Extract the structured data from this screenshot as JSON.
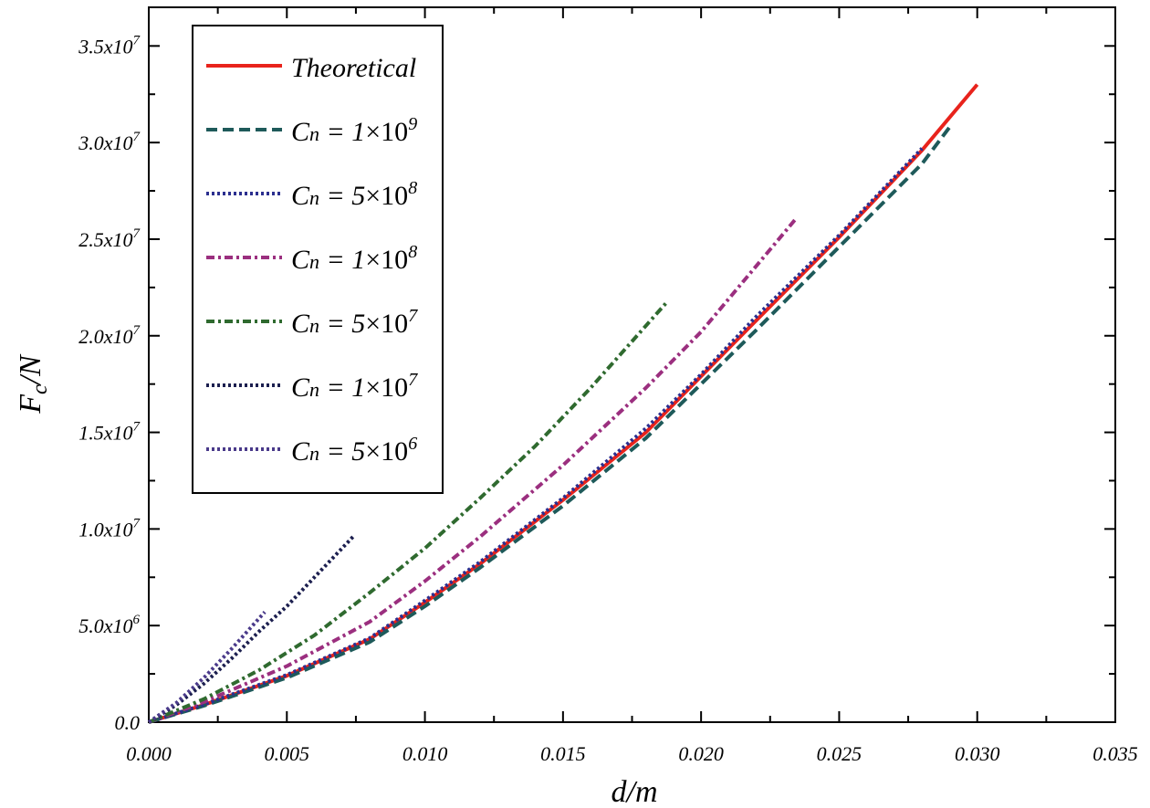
{
  "chart_data": {
    "type": "line",
    "xlabel": "d/m",
    "ylabel": "F",
    "ylabel_sub": "c",
    "ylabel_suffix": "/N",
    "xlim": [
      0,
      0.035
    ],
    "ylim": [
      0,
      37000000
    ],
    "x_ticks": [
      {
        "value": 0.0,
        "label": "0.000"
      },
      {
        "value": 0.005,
        "label": "0.005"
      },
      {
        "value": 0.01,
        "label": "0.010"
      },
      {
        "value": 0.015,
        "label": "0.015"
      },
      {
        "value": 0.02,
        "label": "0.020"
      },
      {
        "value": 0.025,
        "label": "0.025"
      },
      {
        "value": 0.03,
        "label": "0.030"
      },
      {
        "value": 0.035,
        "label": "0.035"
      }
    ],
    "y_ticks": [
      {
        "value": 0,
        "base": "0.0",
        "exp": ""
      },
      {
        "value": 5000000,
        "base": "5.0x10",
        "exp": "6"
      },
      {
        "value": 10000000,
        "base": "1.0x10",
        "exp": "7"
      },
      {
        "value": 15000000,
        "base": "1.5x10",
        "exp": "7"
      },
      {
        "value": 20000000,
        "base": "2.0x10",
        "exp": "7"
      },
      {
        "value": 25000000,
        "base": "2.5x10",
        "exp": "7"
      },
      {
        "value": 30000000,
        "base": "3.0x10",
        "exp": "7"
      },
      {
        "value": 35000000,
        "base": "3.5x10",
        "exp": "7"
      }
    ],
    "legend_position": "top-left",
    "series": [
      {
        "name": "Theoretical",
        "label": "Theoretical",
        "color": "#e8231c",
        "style": "solid",
        "x": [
          0,
          0.002,
          0.005,
          0.008,
          0.01,
          0.012,
          0.015,
          0.018,
          0.02,
          0.022,
          0.025,
          0.028,
          0.03
        ],
        "y": [
          0,
          900000,
          2400000,
          4300000,
          6200000,
          8200000,
          11500000,
          15000000,
          17900000,
          20800000,
          25100000,
          29600000,
          33000000
        ]
      },
      {
        "name": "Cn = 1x10^9",
        "cn_base": "1",
        "cn_exp": "9",
        "color": "#1e5a5a",
        "style": "dashed",
        "x": [
          0,
          0.002,
          0.005,
          0.008,
          0.01,
          0.012,
          0.015,
          0.018,
          0.02,
          0.022,
          0.025,
          0.028,
          0.029
        ],
        "y": [
          0,
          850000,
          2300000,
          4150000,
          6000000,
          8000000,
          11200000,
          14700000,
          17500000,
          20300000,
          24600000,
          28900000,
          30800000
        ]
      },
      {
        "name": "Cn = 5x10^8",
        "cn_base": "5",
        "cn_exp": "8",
        "color": "#2b2f8f",
        "style": "dotted",
        "x": [
          0,
          0.002,
          0.005,
          0.008,
          0.01,
          0.012,
          0.015,
          0.018,
          0.02,
          0.022,
          0.025,
          0.028
        ],
        "y": [
          0,
          920000,
          2450000,
          4350000,
          6300000,
          8300000,
          11600000,
          15200000,
          18000000,
          21000000,
          25200000,
          29700000
        ]
      },
      {
        "name": "Cn = 1x10^8",
        "cn_base": "1",
        "cn_exp": "8",
        "color": "#9b2f7f",
        "style": "dashdot",
        "x": [
          0,
          0.002,
          0.005,
          0.008,
          0.01,
          0.012,
          0.015,
          0.018,
          0.02,
          0.0234
        ],
        "y": [
          0,
          1050000,
          2900000,
          5200000,
          7300000,
          9600000,
          13300000,
          17300000,
          20200000,
          26000000
        ]
      },
      {
        "name": "Cn = 5x10^7",
        "cn_base": "5",
        "cn_exp": "7",
        "color": "#2f6a2f",
        "style": "dashdot",
        "x": [
          0,
          0.002,
          0.004,
          0.006,
          0.008,
          0.01,
          0.012,
          0.014,
          0.016,
          0.0188
        ],
        "y": [
          0,
          1200000,
          2700000,
          4500000,
          6700000,
          9000000,
          11600000,
          14300000,
          17300000,
          21800000
        ]
      },
      {
        "name": "Cn = 1x10^7",
        "cn_base": "1",
        "cn_exp": "7",
        "color": "#1c1f4f",
        "style": "dotted",
        "x": [
          0,
          0.001,
          0.002,
          0.003,
          0.004,
          0.005,
          0.006,
          0.0074
        ],
        "y": [
          0,
          900000,
          2000000,
          3300000,
          4700000,
          6000000,
          7500000,
          9600000
        ]
      },
      {
        "name": "Cn = 5x10^6",
        "cn_base": "5",
        "cn_exp": "6",
        "color": "#4a3a8a",
        "style": "dotted",
        "x": [
          0,
          0.001,
          0.002,
          0.003,
          0.0042
        ],
        "y": [
          0,
          1000000,
          2300000,
          3800000,
          5700000
        ]
      }
    ]
  }
}
